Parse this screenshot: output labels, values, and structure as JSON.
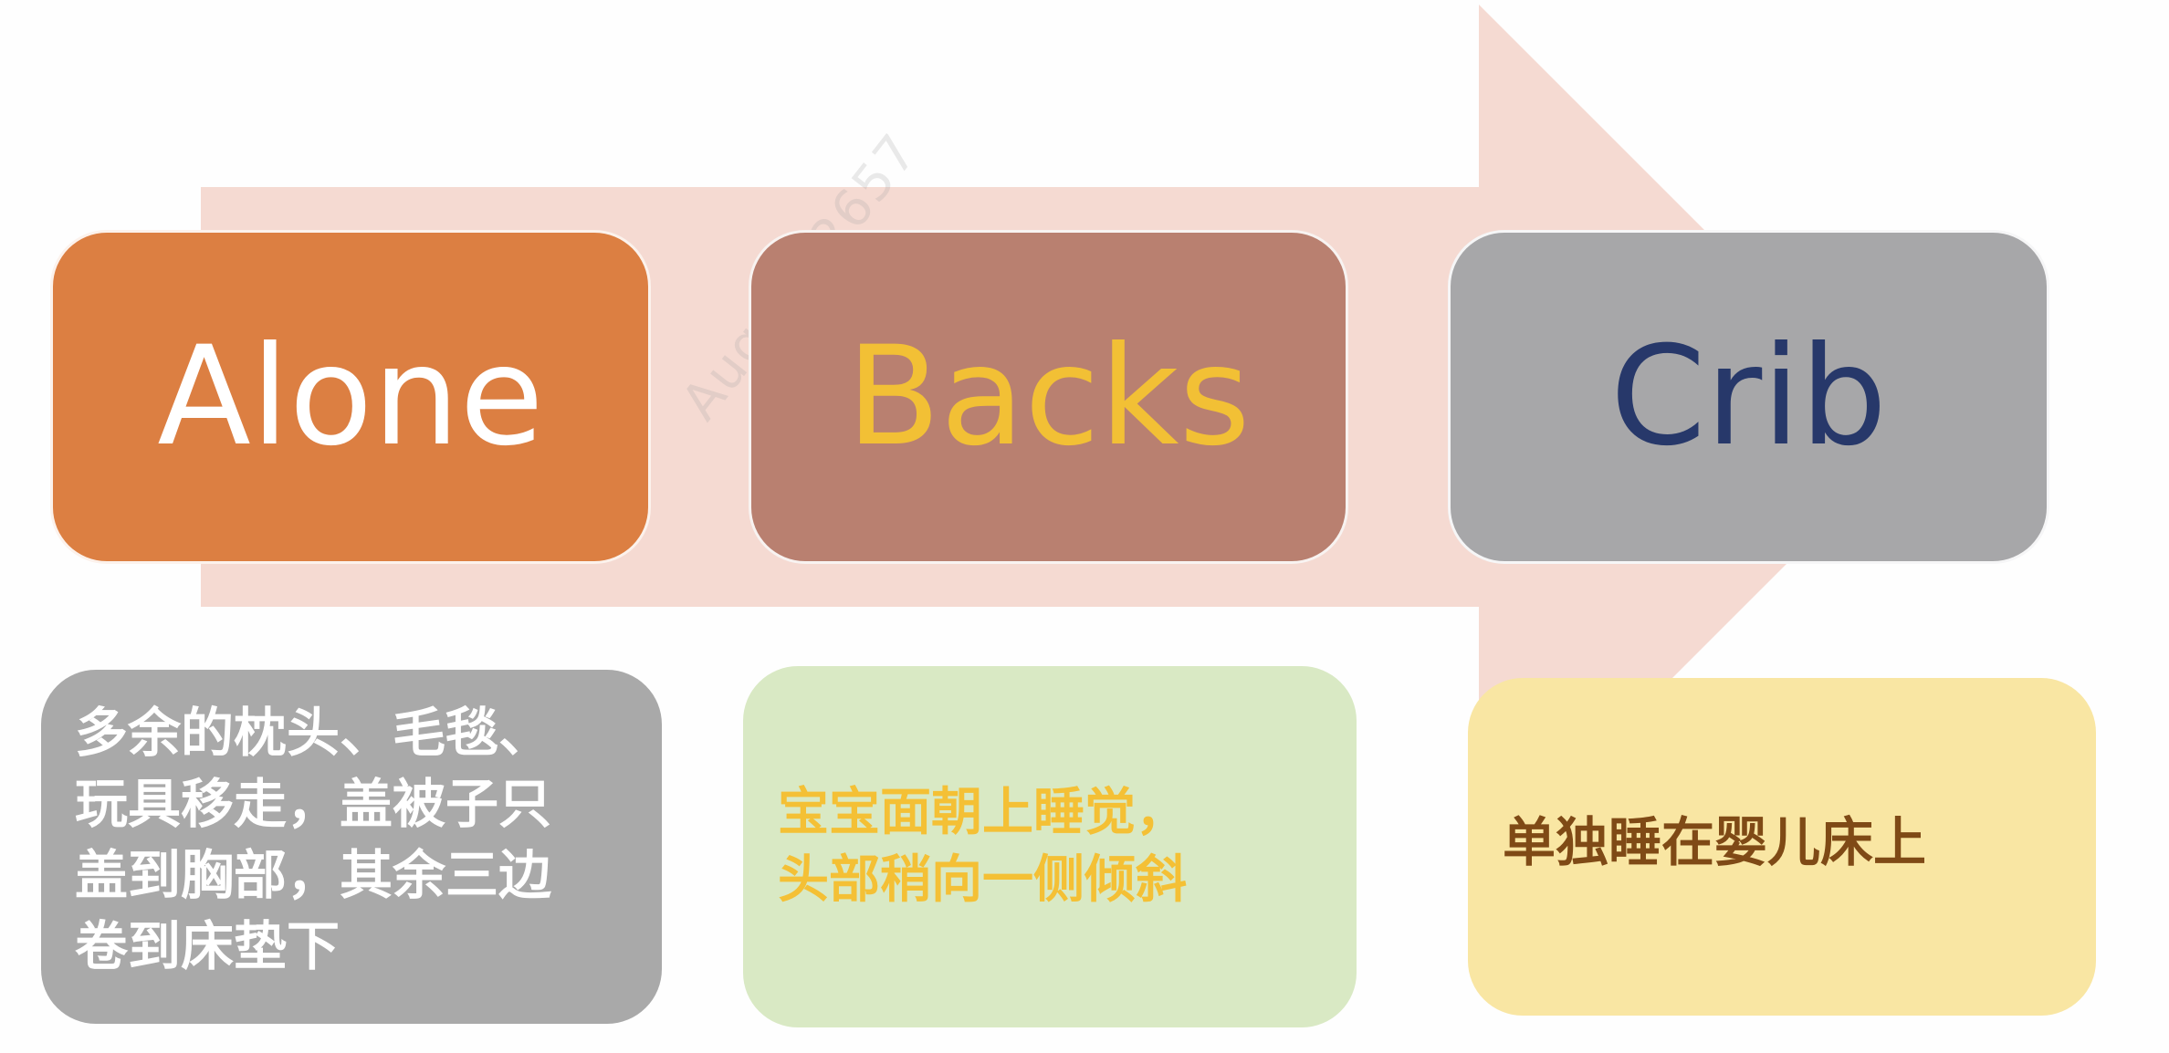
{
  "watermark": "August 2657",
  "steps": [
    {
      "keyword": "Alone",
      "keyword_color": "#ffffff",
      "box_color": "#dc7f42",
      "note_lines": [
        "多余的枕头、毛毯、",
        "玩具移走，盖被子只",
        "盖到胸部，其余三边",
        "卷到床垫下"
      ],
      "note_color": "#ffffff",
      "note_bg": "#a9a9a9"
    },
    {
      "keyword": "Backs",
      "keyword_color": "#f2c035",
      "box_color": "#b98070",
      "note_lines": [
        "宝宝面朝上睡觉，",
        "头部稍向一侧倾斜"
      ],
      "note_color": "#f4c035",
      "note_bg": "#d9e9c4"
    },
    {
      "keyword": "Crib",
      "keyword_color": "#27386a",
      "box_color": "#a7a7a9",
      "note_lines": [
        "单独睡在婴儿床上"
      ],
      "note_color": "#7f4a16",
      "note_bg": "#f9e6a3"
    }
  ],
  "arrow_color": "#f5dad2"
}
